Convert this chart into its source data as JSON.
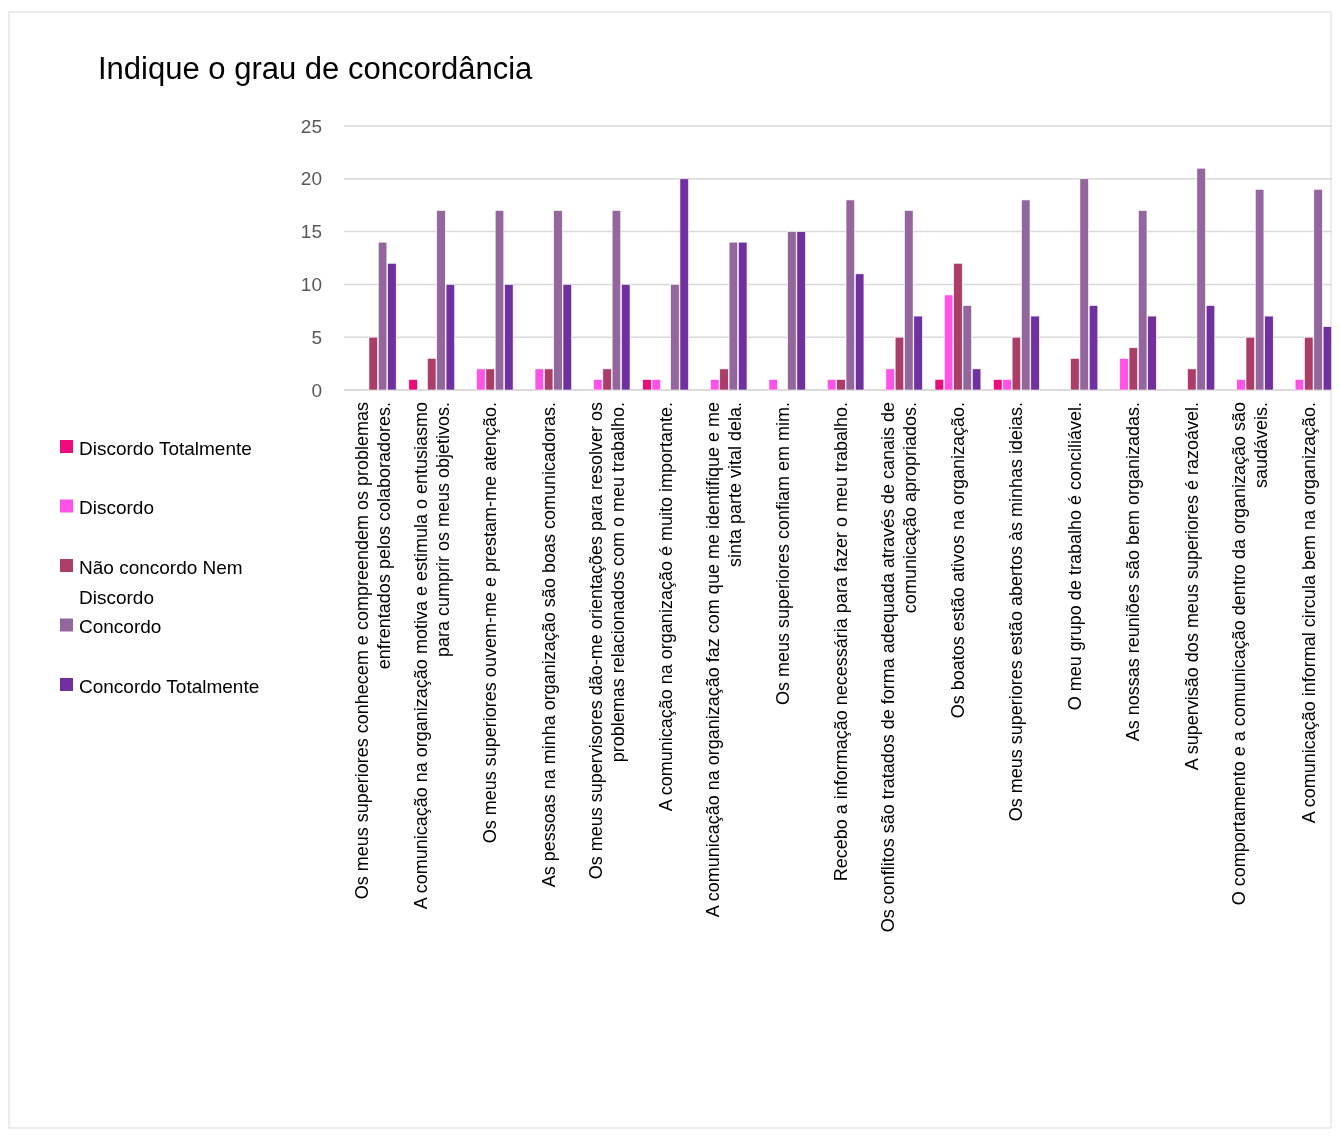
{
  "chart_data": {
    "type": "bar",
    "title": "Indique o grau de concordância",
    "categories": [
      "Os meus superiores conhecem e compreendem os problemas enfrentados pelos colaboradores.",
      "A comunicação na organização motiva e estimula o entusiasmo para cumprir os meus objetivos.",
      "Os meus superiores ouvem-me e prestam-me atenção.",
      "As pessoas na minha organização são boas comunicadoras.",
      "Os meus supervisores dão-me orientações para resolver os problemas relacionados com o meu trabalho.",
      "A comunicação na organização é muito importante.",
      "A comunicação na organização faz com que me identifique e me sinta parte vital dela.",
      "Os meus superiores confiam em mim.",
      "Recebo a informação necessária para fazer o meu trabalho.",
      "Os conflitos são tratados de forma adequada através de canais de comunicação apropriados.",
      "Os boatos estão ativos na organização.",
      "Os meus superiores estão abertos às minhas ideias.",
      "O meu grupo de trabalho é conciliável.",
      "As nossas reuniões são bem organizadas.",
      "A supervisão dos meus superiores é razoável.",
      "O comportamento e a comunicação dentro da organização são saudáveis.",
      "A comunicação informal circula bem na organização."
    ],
    "series": [
      {
        "name": "Discordo Totalmente",
        "color": "#ec0c7c",
        "values": [
          0,
          1,
          0,
          0,
          0,
          1,
          0,
          0,
          0,
          0,
          1,
          1,
          0,
          0,
          0,
          0,
          0
        ]
      },
      {
        "name": "Discordo",
        "color": "#ff52e6",
        "values": [
          0,
          0,
          2,
          2,
          1,
          1,
          1,
          1,
          1,
          2,
          9,
          1,
          0,
          3,
          0,
          1,
          1
        ]
      },
      {
        "name": "Não concordo Nem Discordo",
        "color": "#ab3d68",
        "values": [
          5,
          3,
          2,
          2,
          2,
          0,
          2,
          0,
          1,
          5,
          12,
          5,
          3,
          4,
          2,
          5,
          5
        ]
      },
      {
        "name": "Concordo",
        "color": "#93679e",
        "values": [
          14,
          17,
          17,
          17,
          17,
          10,
          14,
          15,
          18,
          17,
          8,
          18,
          20,
          17,
          21,
          19,
          19
        ]
      },
      {
        "name": "Concordo Totalmente",
        "color": "#7030a0",
        "values": [
          12,
          10,
          10,
          10,
          10,
          20,
          14,
          15,
          11,
          7,
          2,
          7,
          8,
          7,
          8,
          7,
          6
        ]
      }
    ],
    "ylim": [
      0,
      25
    ],
    "yticks": [
      0,
      5,
      10,
      15,
      20,
      25
    ],
    "grid": "y",
    "legend": "left"
  }
}
